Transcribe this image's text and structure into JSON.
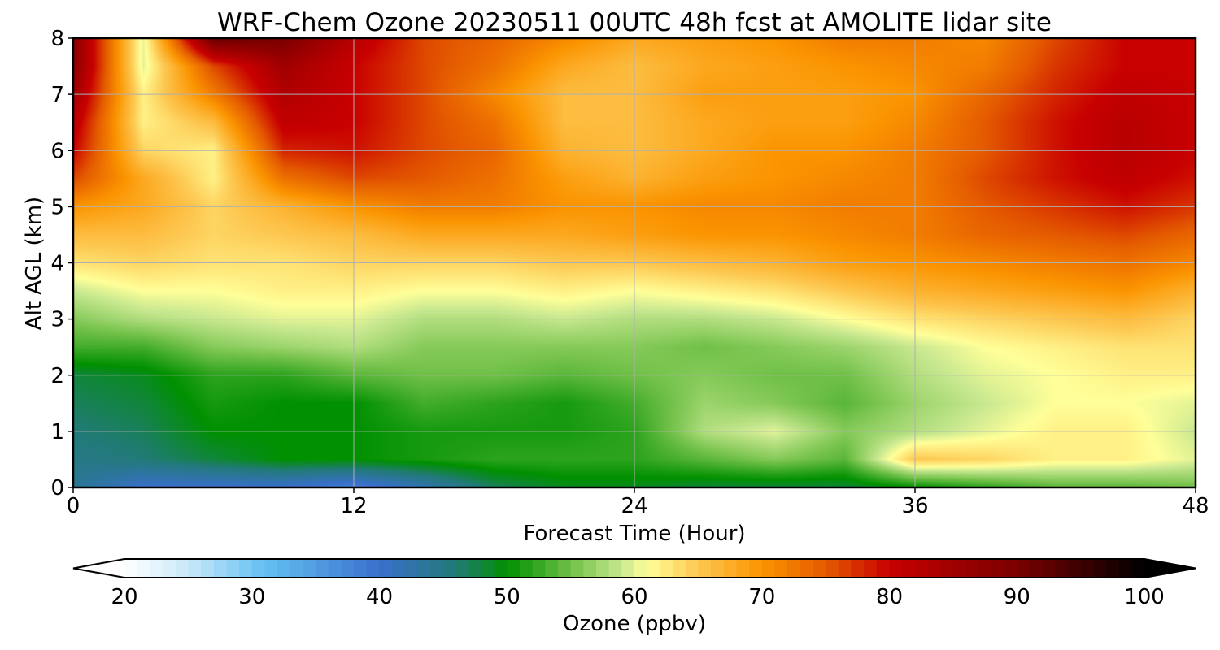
{
  "chart_data": {
    "type": "heatmap",
    "title": "WRF-Chem Ozone  20230511 00UTC 48h fcst at AMOLITE lidar site",
    "xlabel": "Forecast Time (Hour)",
    "ylabel": "Alt AGL (km)",
    "xlim": [
      0,
      48
    ],
    "ylim": [
      0,
      8
    ],
    "xticks": [
      0,
      12,
      24,
      36,
      48
    ],
    "yticks": [
      0,
      1,
      2,
      3,
      4,
      5,
      6,
      7,
      8
    ],
    "grid": true,
    "x": [
      0,
      3,
      6,
      9,
      12,
      15,
      18,
      21,
      24,
      27,
      30,
      33,
      36,
      39,
      42,
      45,
      48
    ],
    "y": [
      0,
      0.5,
      1,
      1.5,
      2,
      2.5,
      3,
      3.5,
      4,
      4.5,
      5,
      5.5,
      6,
      6.5,
      7,
      7.5,
      8
    ],
    "z": [
      [
        44,
        40,
        40,
        40,
        38,
        42,
        47,
        49,
        49,
        48,
        48,
        48,
        50,
        52,
        54,
        54,
        55
      ],
      [
        45,
        46,
        48,
        50,
        50,
        51,
        52,
        52,
        52,
        54,
        56,
        54,
        65,
        64,
        62,
        62,
        60
      ],
      [
        46,
        47,
        50,
        50,
        50,
        51,
        51,
        51,
        52,
        58,
        60,
        56,
        58,
        60,
        62,
        62,
        59
      ],
      [
        47,
        48,
        51,
        50,
        50,
        53,
        52,
        51,
        53,
        57,
        56,
        54,
        57,
        59,
        61,
        61,
        60
      ],
      [
        48,
        49,
        52,
        52,
        54,
        55,
        55,
        54,
        55,
        56,
        55,
        55,
        58,
        60,
        61,
        62,
        62
      ],
      [
        53,
        53,
        56,
        57,
        58,
        56,
        56,
        56,
        56,
        55,
        56,
        57,
        59,
        61,
        62,
        63,
        63
      ],
      [
        56,
        58,
        59,
        60,
        60,
        58,
        58,
        59,
        58,
        58,
        59,
        61,
        63,
        64,
        65,
        66,
        64
      ],
      [
        59,
        61,
        61,
        62,
        62,
        61,
        61,
        62,
        61,
        62,
        63,
        65,
        67,
        68,
        69,
        70,
        67
      ],
      [
        63,
        64,
        63,
        63,
        64,
        64,
        64,
        65,
        65,
        66,
        67,
        69,
        70,
        71,
        72,
        73,
        71
      ],
      [
        66,
        66,
        64,
        65,
        66,
        68,
        68,
        68,
        69,
        70,
        70,
        71,
        72,
        74,
        75,
        76,
        74
      ],
      [
        70,
        68,
        64,
        67,
        70,
        72,
        72,
        70,
        70,
        71,
        71,
        72,
        72,
        75,
        77,
        79,
        77
      ],
      [
        76,
        68,
        62,
        73,
        76,
        75,
        73,
        69,
        67,
        69,
        70,
        71,
        72,
        76,
        79,
        81,
        79
      ],
      [
        80,
        64,
        62,
        78,
        79,
        76,
        74,
        67,
        66,
        68,
        70,
        70,
        72,
        75,
        79,
        82,
        80
      ],
      [
        82,
        62,
        66,
        81,
        80,
        76,
        73,
        66,
        66,
        68,
        69,
        69,
        71,
        75,
        79,
        82,
        80
      ],
      [
        85,
        62,
        72,
        83,
        80,
        76,
        71,
        66,
        66,
        69,
        69,
        69,
        70,
        74,
        78,
        81,
        80
      ],
      [
        88,
        60,
        76,
        85,
        80,
        76,
        73,
        68,
        66,
        68,
        69,
        70,
        71,
        72,
        77,
        80,
        80
      ],
      [
        88,
        60,
        92,
        90,
        82,
        76,
        74,
        71,
        68,
        69,
        70,
        72,
        72,
        71,
        76,
        80,
        80
      ]
    ],
    "colorbar": {
      "label": "Ozone  (ppbv)",
      "min": 20,
      "max": 100,
      "ticks": [
        20,
        30,
        40,
        50,
        60,
        70,
        80,
        90,
        100
      ],
      "extend": "both",
      "stops": [
        {
          "v": 20,
          "c": "#ffffff"
        },
        {
          "v": 25,
          "c": "#c8e8f8"
        },
        {
          "v": 31,
          "c": "#64c0f2"
        },
        {
          "v": 40,
          "c": "#3a6fcc"
        },
        {
          "v": 46,
          "c": "#227a78"
        },
        {
          "v": 50,
          "c": "#009000"
        },
        {
          "v": 55,
          "c": "#70c048"
        },
        {
          "v": 59,
          "c": "#c8e890"
        },
        {
          "v": 61,
          "c": "#ffff99"
        },
        {
          "v": 65,
          "c": "#fdc750"
        },
        {
          "v": 70,
          "c": "#fb9400"
        },
        {
          "v": 75,
          "c": "#e45a00"
        },
        {
          "v": 80,
          "c": "#c80000"
        },
        {
          "v": 90,
          "c": "#7a0000"
        },
        {
          "v": 100,
          "c": "#000000"
        }
      ]
    }
  }
}
